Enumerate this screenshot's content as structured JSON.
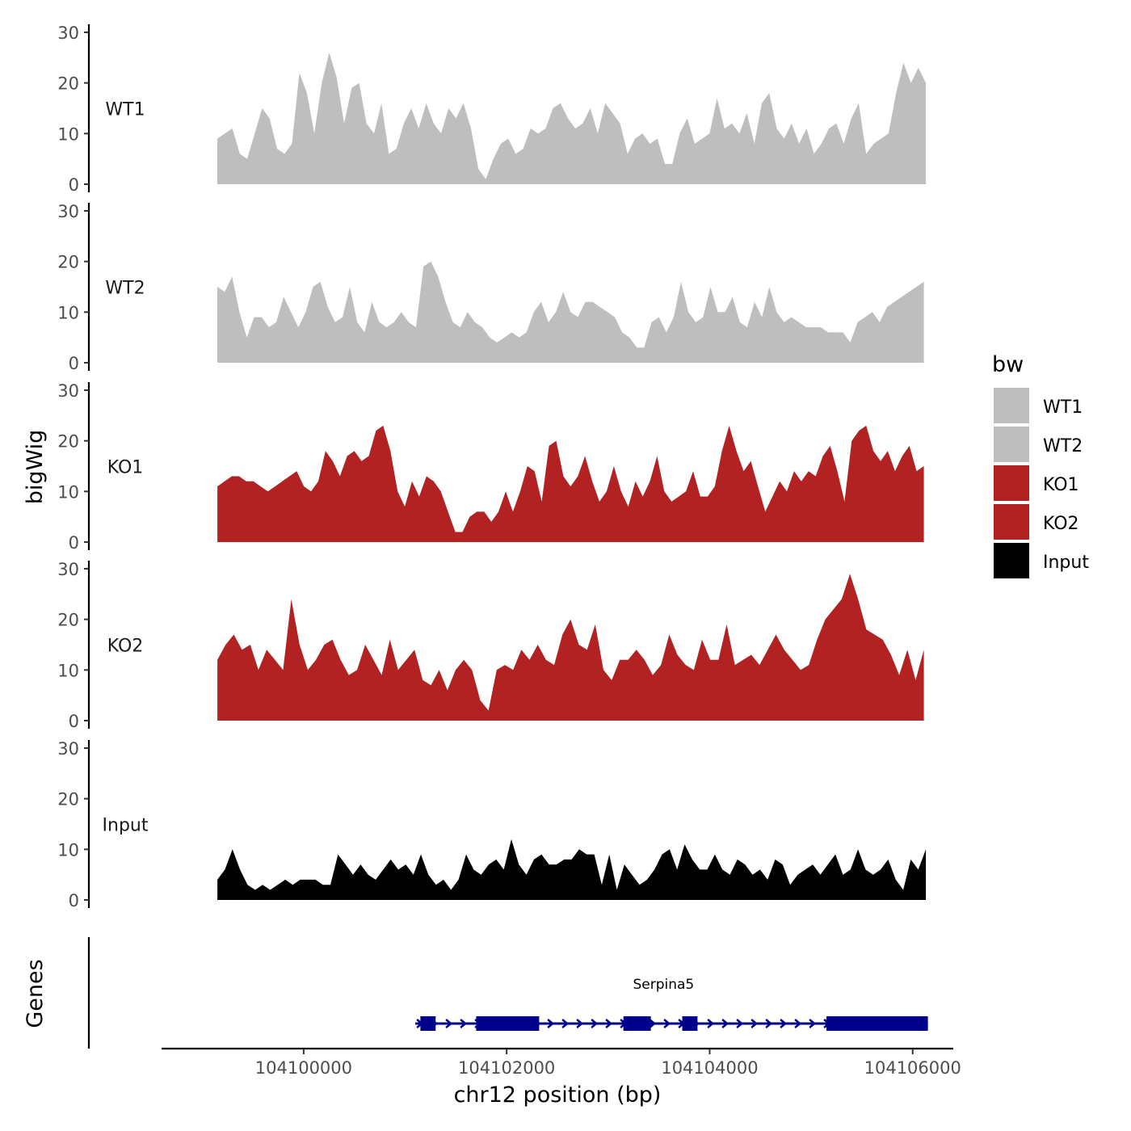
{
  "chart_data": {
    "type": "area",
    "title": "",
    "ylabel": "bigWig",
    "xlabel": "chr12 position (bp)",
    "gene_track_label": "Genes",
    "ylim": [
      0,
      30
    ],
    "y_ticks": [
      0,
      10,
      20,
      30
    ],
    "xlim": [
      104098600,
      104106400
    ],
    "x_ticks": [
      104100000,
      104102000,
      104104000,
      104106000
    ],
    "x_tick_labels": [
      "104100000",
      "104102000",
      "104104000",
      "104106000"
    ],
    "legend": {
      "title": "bw",
      "placement": "right",
      "entries": [
        {
          "label": "WT1",
          "color": "#BEBEBE"
        },
        {
          "label": "WT2",
          "color": "#BEBEBE"
        },
        {
          "label": "KO1",
          "color": "#B22222"
        },
        {
          "label": "KO2",
          "color": "#B22222"
        },
        {
          "label": "Input",
          "color": "#000000"
        }
      ]
    },
    "series": [
      {
        "name": "WT1",
        "color": "#BEBEBE",
        "x_start": 104099150,
        "x_end": 104106130,
        "values": [
          9,
          10,
          11,
          6,
          5,
          10,
          15,
          13,
          7,
          6,
          8,
          22,
          18,
          10,
          20,
          26,
          21,
          12,
          19,
          20,
          12,
          10,
          16,
          6,
          7,
          12,
          15,
          11,
          16,
          12,
          10,
          15,
          13,
          16,
          11,
          3,
          1,
          5,
          8,
          9,
          6,
          7,
          11,
          10,
          11,
          15,
          16,
          13,
          11,
          12,
          15,
          10,
          16,
          14,
          12,
          6,
          9,
          10,
          8,
          9,
          4,
          4,
          10,
          13,
          8,
          9,
          10,
          17,
          11,
          12,
          10,
          14,
          8,
          16,
          18,
          11,
          9,
          12,
          8,
          11,
          6,
          8,
          11,
          12,
          8,
          13,
          16,
          6,
          8,
          9,
          10,
          18,
          24,
          20,
          23,
          20
        ]
      },
      {
        "name": "WT2",
        "color": "#BEBEBE",
        "x_start": 104099150,
        "x_end": 104106110,
        "values": [
          15,
          14,
          17,
          10,
          5,
          9,
          9,
          7,
          8,
          13,
          10,
          7,
          10,
          15,
          16,
          11,
          8,
          9,
          15,
          8,
          6,
          12,
          8,
          7,
          8,
          10,
          8,
          7,
          19,
          20,
          17,
          12,
          8,
          7,
          10,
          8,
          7,
          5,
          4,
          5,
          6,
          5,
          6,
          10,
          12,
          8,
          10,
          14,
          10,
          9,
          12,
          12,
          11,
          10,
          9,
          6,
          5,
          3,
          3,
          8,
          9,
          6,
          9,
          16,
          10,
          8,
          9,
          15,
          10,
          10,
          13,
          8,
          7,
          12,
          9,
          15,
          10,
          8,
          9,
          8,
          7,
          7,
          7,
          6,
          6,
          6,
          4,
          8,
          9,
          10,
          8,
          11,
          12,
          13,
          14,
          15,
          16
        ]
      },
      {
        "name": "KO1",
        "color": "#B22222",
        "x_start": 104099150,
        "x_end": 104106110,
        "values": [
          11,
          12,
          13,
          13,
          12,
          12,
          11,
          10,
          11,
          12,
          13,
          14,
          11,
          10,
          12,
          18,
          16,
          13,
          17,
          18,
          16,
          17,
          22,
          23,
          18,
          10,
          7,
          12,
          9,
          13,
          12,
          10,
          6,
          2,
          2,
          5,
          6,
          6,
          4,
          6,
          10,
          6,
          10,
          15,
          14,
          8,
          19,
          20,
          13,
          11,
          13,
          17,
          12,
          8,
          10,
          15,
          10,
          7,
          12,
          9,
          12,
          17,
          10,
          8,
          9,
          10,
          14,
          9,
          9,
          11,
          18,
          23,
          18,
          14,
          16,
          11,
          6,
          9,
          12,
          10,
          14,
          12,
          14,
          13,
          17,
          19,
          14,
          8,
          20,
          22,
          23,
          18,
          16,
          18,
          14,
          17,
          19,
          14,
          15
        ]
      },
      {
        "name": "KO2",
        "color": "#B22222",
        "x_start": 104099150,
        "x_end": 104106110,
        "values": [
          12,
          15,
          17,
          14,
          15,
          10,
          14,
          12,
          10,
          24,
          15,
          10,
          12,
          15,
          16,
          12,
          9,
          10,
          15,
          12,
          9,
          16,
          10,
          12,
          14,
          8,
          7,
          10,
          6,
          10,
          12,
          10,
          4,
          2,
          10,
          11,
          10,
          14,
          12,
          15,
          12,
          11,
          17,
          20,
          15,
          14,
          19,
          10,
          8,
          12,
          12,
          14,
          12,
          9,
          11,
          17,
          13,
          11,
          10,
          16,
          12,
          12,
          19,
          11,
          12,
          13,
          11,
          14,
          17,
          14,
          12,
          10,
          11,
          16,
          20,
          22,
          24,
          29,
          24,
          18,
          17,
          16,
          13,
          9,
          14,
          8,
          14
        ]
      },
      {
        "name": "Input",
        "color": "#000000",
        "x_start": 104099150,
        "x_end": 104106130,
        "values": [
          4,
          6,
          10,
          6,
          3,
          2,
          3,
          2,
          3,
          4,
          3,
          4,
          4,
          4,
          3,
          3,
          9,
          7,
          5,
          7,
          5,
          4,
          6,
          8,
          6,
          7,
          5,
          9,
          5,
          3,
          4,
          2,
          4,
          9,
          6,
          5,
          7,
          8,
          6,
          12,
          7,
          5,
          8,
          9,
          7,
          7,
          8,
          8,
          10,
          9,
          9,
          3,
          9,
          2,
          7,
          5,
          3,
          4,
          6,
          9,
          10,
          6,
          11,
          8,
          6,
          6,
          9,
          6,
          5,
          8,
          7,
          5,
          6,
          4,
          8,
          7,
          3,
          5,
          6,
          7,
          5,
          7,
          9,
          5,
          6,
          10,
          6,
          5,
          6,
          8,
          4,
          2,
          8,
          6,
          10
        ]
      }
    ],
    "gene": {
      "name": "Serpina5",
      "strand": "+",
      "color": "#00008B",
      "start": 104101100,
      "end": 104106150,
      "exons": [
        [
          104101150,
          104101300
        ],
        [
          104101700,
          104102320
        ],
        [
          104103150,
          104103420
        ],
        [
          104103730,
          104103880
        ],
        [
          104105150,
          104106150
        ]
      ]
    }
  }
}
